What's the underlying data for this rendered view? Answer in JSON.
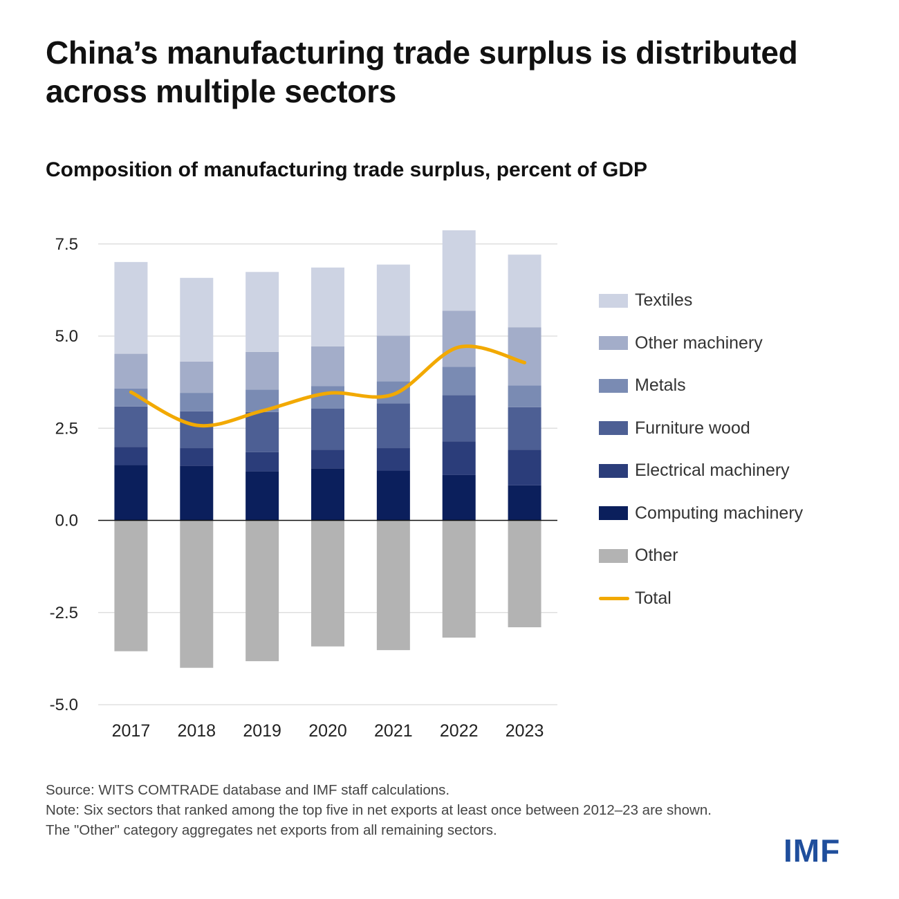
{
  "title": "China’s manufacturing trade surplus is distributed across multiple sectors",
  "subtitle": "Composition of manufacturing trade surplus, percent of GDP",
  "footnotes": {
    "source": "Source: WITS COMTRADE database and IMF staff calculations.",
    "note": "Note: Six sectors that ranked among the top five in net exports at least once between 2012–23 are shown. The \"Other\" category aggregates net exports from all remaining sectors."
  },
  "logo": "IMF",
  "chart_data": {
    "type": "bar",
    "stacked": true,
    "categories": [
      "2017",
      "2018",
      "2019",
      "2020",
      "2021",
      "2022",
      "2023"
    ],
    "ylim": [
      -5.0,
      8.0
    ],
    "yticks": [
      "7.5",
      "5.0",
      "2.5",
      "0.0",
      "-2.5",
      "-5.0"
    ],
    "ytick_values": [
      7.5,
      5.0,
      2.5,
      0.0,
      -2.5,
      -5.0
    ],
    "grid": true,
    "legend_position": "right",
    "series": [
      {
        "name": "Computing machinery",
        "color": "#0b1f5c",
        "values": [
          1.5,
          1.48,
          1.33,
          1.41,
          1.35,
          1.23,
          0.95
        ]
      },
      {
        "name": "Electrical machinery",
        "color": "#2b3d7a",
        "values": [
          0.49,
          0.48,
          0.52,
          0.51,
          0.61,
          0.91,
          0.97
        ]
      },
      {
        "name": "Furniture wood",
        "color": "#4d5f94",
        "values": [
          1.1,
          1.0,
          1.09,
          1.11,
          1.21,
          1.26,
          1.15
        ]
      },
      {
        "name": "Metals",
        "color": "#7a8bb3",
        "values": [
          0.49,
          0.5,
          0.61,
          0.61,
          0.6,
          0.77,
          0.59
        ]
      },
      {
        "name": "Other machinery",
        "color": "#a3adc9",
        "values": [
          0.94,
          0.85,
          1.02,
          1.08,
          1.24,
          1.52,
          1.58
        ]
      },
      {
        "name": "Textiles",
        "color": "#cdd3e3",
        "values": [
          2.49,
          2.27,
          2.17,
          2.14,
          1.93,
          2.18,
          1.97
        ]
      },
      {
        "name": "Other",
        "color": "#b3b3b3",
        "values": [
          -3.55,
          -4.0,
          -3.82,
          -3.42,
          -3.52,
          -3.18,
          -2.9
        ]
      }
    ],
    "line": {
      "name": "Total",
      "color": "#f2a900",
      "values": [
        3.48,
        2.58,
        2.97,
        3.45,
        3.42,
        4.7,
        4.28
      ]
    }
  }
}
